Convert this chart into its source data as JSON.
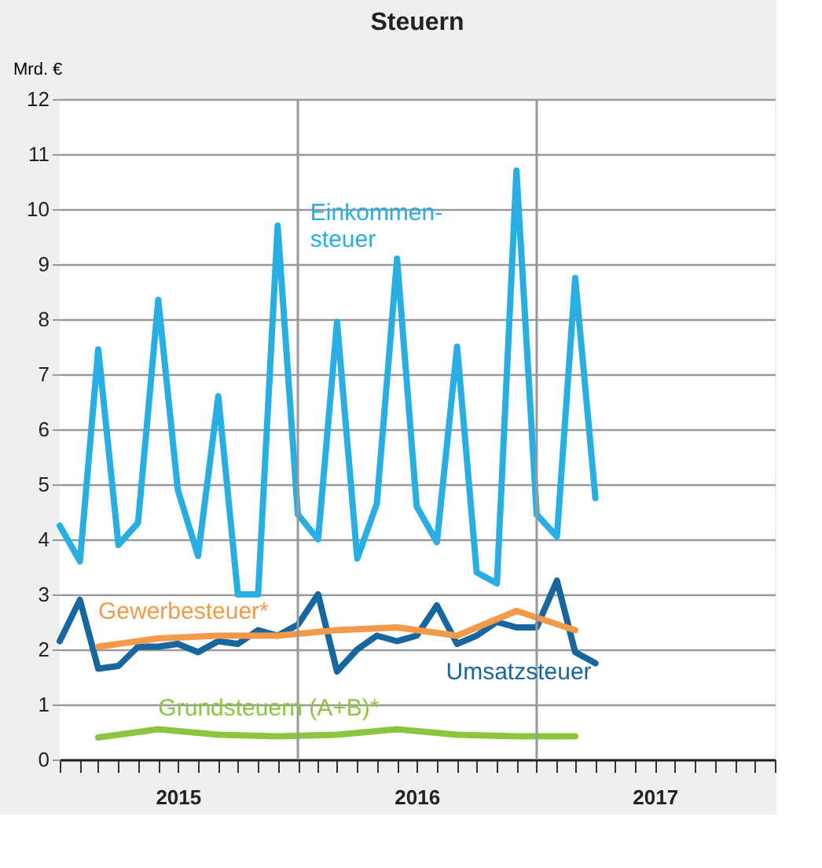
{
  "chart_data": {
    "type": "line",
    "title": "Steuern",
    "ylabel": "Mrd. €",
    "ylim": [
      0,
      12
    ],
    "yticks": [
      0,
      1,
      2,
      3,
      4,
      5,
      6,
      7,
      8,
      9,
      10,
      11,
      12
    ],
    "xlim": [
      "2015-01",
      "2018-01"
    ],
    "xticks": [
      {
        "value": "2015-01",
        "label": null
      },
      {
        "value": "2015-02",
        "label": null
      },
      {
        "value": "2015-03",
        "label": null
      },
      {
        "value": "2015-04",
        "label": null
      },
      {
        "value": "2015-05",
        "label": null
      },
      {
        "value": "2015-06",
        "label": null
      },
      {
        "value": "2015-07",
        "label": "2015"
      },
      {
        "value": "2015-08",
        "label": null
      },
      {
        "value": "2015-09",
        "label": null
      },
      {
        "value": "2015-10",
        "label": null
      },
      {
        "value": "2015-11",
        "label": null
      },
      {
        "value": "2015-12",
        "label": null
      },
      {
        "value": "2016-01",
        "label": null
      },
      {
        "value": "2016-02",
        "label": null
      },
      {
        "value": "2016-03",
        "label": null
      },
      {
        "value": "2016-04",
        "label": null
      },
      {
        "value": "2016-05",
        "label": null
      },
      {
        "value": "2016-06",
        "label": null
      },
      {
        "value": "2016-07",
        "label": "2016"
      },
      {
        "value": "2016-08",
        "label": null
      },
      {
        "value": "2016-09",
        "label": null
      },
      {
        "value": "2016-10",
        "label": null
      },
      {
        "value": "2016-11",
        "label": null
      },
      {
        "value": "2016-12",
        "label": null
      },
      {
        "value": "2017-01",
        "label": null
      },
      {
        "value": "2017-02",
        "label": null
      },
      {
        "value": "2017-03",
        "label": null
      },
      {
        "value": "2017-04",
        "label": null
      },
      {
        "value": "2017-05",
        "label": null
      },
      {
        "value": "2017-06",
        "label": null
      },
      {
        "value": "2017-07",
        "label": "2017"
      },
      {
        "value": "2017-08",
        "label": null
      },
      {
        "value": "2017-09",
        "label": null
      },
      {
        "value": "2017-10",
        "label": null
      },
      {
        "value": "2017-11",
        "label": null
      },
      {
        "value": "2017-12",
        "label": null
      },
      {
        "value": "2018-01",
        "label": null
      }
    ],
    "grid": "y",
    "marker": "none",
    "line_style": "solid",
    "ref_lines": [
      {
        "axis": "x",
        "value": "2016-01",
        "color": "#999999"
      },
      {
        "axis": "x",
        "value": "2017-01",
        "color": "#999999"
      }
    ],
    "series": [
      {
        "name": "Einkommen-\nsteuer",
        "color": "#29aee3",
        "x": [
          "2015-01",
          "2015-02",
          "2015-03",
          "2015-04",
          "2015-05",
          "2015-06",
          "2015-07",
          "2015-08",
          "2015-09",
          "2015-10",
          "2015-11",
          "2015-12",
          "2016-01",
          "2016-02",
          "2016-03",
          "2016-04",
          "2016-05",
          "2016-06",
          "2016-07",
          "2016-08",
          "2016-09",
          "2016-10",
          "2016-11",
          "2016-12",
          "2017-01",
          "2017-02",
          "2017-03",
          "2017-04"
        ],
        "values": [
          4.25,
          3.6,
          7.45,
          3.9,
          4.3,
          8.35,
          4.9,
          3.7,
          6.6,
          3.0,
          3.0,
          9.7,
          4.45,
          4.0,
          7.95,
          3.65,
          4.65,
          9.1,
          4.6,
          3.95,
          7.5,
          3.4,
          3.2,
          10.7,
          4.45,
          4.05,
          8.75,
          4.75
        ]
      },
      {
        "name": "Umsatzsteuer",
        "color": "#17679e",
        "x": [
          "2015-01",
          "2015-02",
          "2015-03",
          "2015-04",
          "2015-05",
          "2015-06",
          "2015-07",
          "2015-08",
          "2015-09",
          "2015-10",
          "2015-11",
          "2015-12",
          "2016-01",
          "2016-02",
          "2016-03",
          "2016-04",
          "2016-05",
          "2016-06",
          "2016-07",
          "2016-08",
          "2016-09",
          "2016-10",
          "2016-11",
          "2016-12",
          "2017-01",
          "2017-02",
          "2017-03",
          "2017-04"
        ],
        "values": [
          2.15,
          2.9,
          1.65,
          1.7,
          2.05,
          2.05,
          2.1,
          1.95,
          2.15,
          2.1,
          2.35,
          2.25,
          2.45,
          3.0,
          1.6,
          2.0,
          2.25,
          2.15,
          2.25,
          2.8,
          2.1,
          2.25,
          2.5,
          2.4,
          2.4,
          3.25,
          1.95,
          1.75
        ]
      },
      {
        "name": "Gewerbesteuer*",
        "color": "#f39a4a",
        "x": [
          "2015-03",
          "2015-06",
          "2015-09",
          "2015-12",
          "2016-03",
          "2016-06",
          "2016-09",
          "2016-12",
          "2017-03"
        ],
        "values": [
          2.05,
          2.2,
          2.25,
          2.25,
          2.35,
          2.4,
          2.25,
          2.7,
          2.35
        ]
      },
      {
        "name": "Grundsteuern (A+B)*",
        "color": "#8cc63f",
        "x": [
          "2015-03",
          "2015-06",
          "2015-09",
          "2015-12",
          "2016-03",
          "2016-06",
          "2016-09",
          "2016-12",
          "2017-03"
        ],
        "values": [
          0.4,
          0.55,
          0.45,
          0.42,
          0.45,
          0.55,
          0.45,
          0.42,
          0.42
        ]
      }
    ]
  }
}
